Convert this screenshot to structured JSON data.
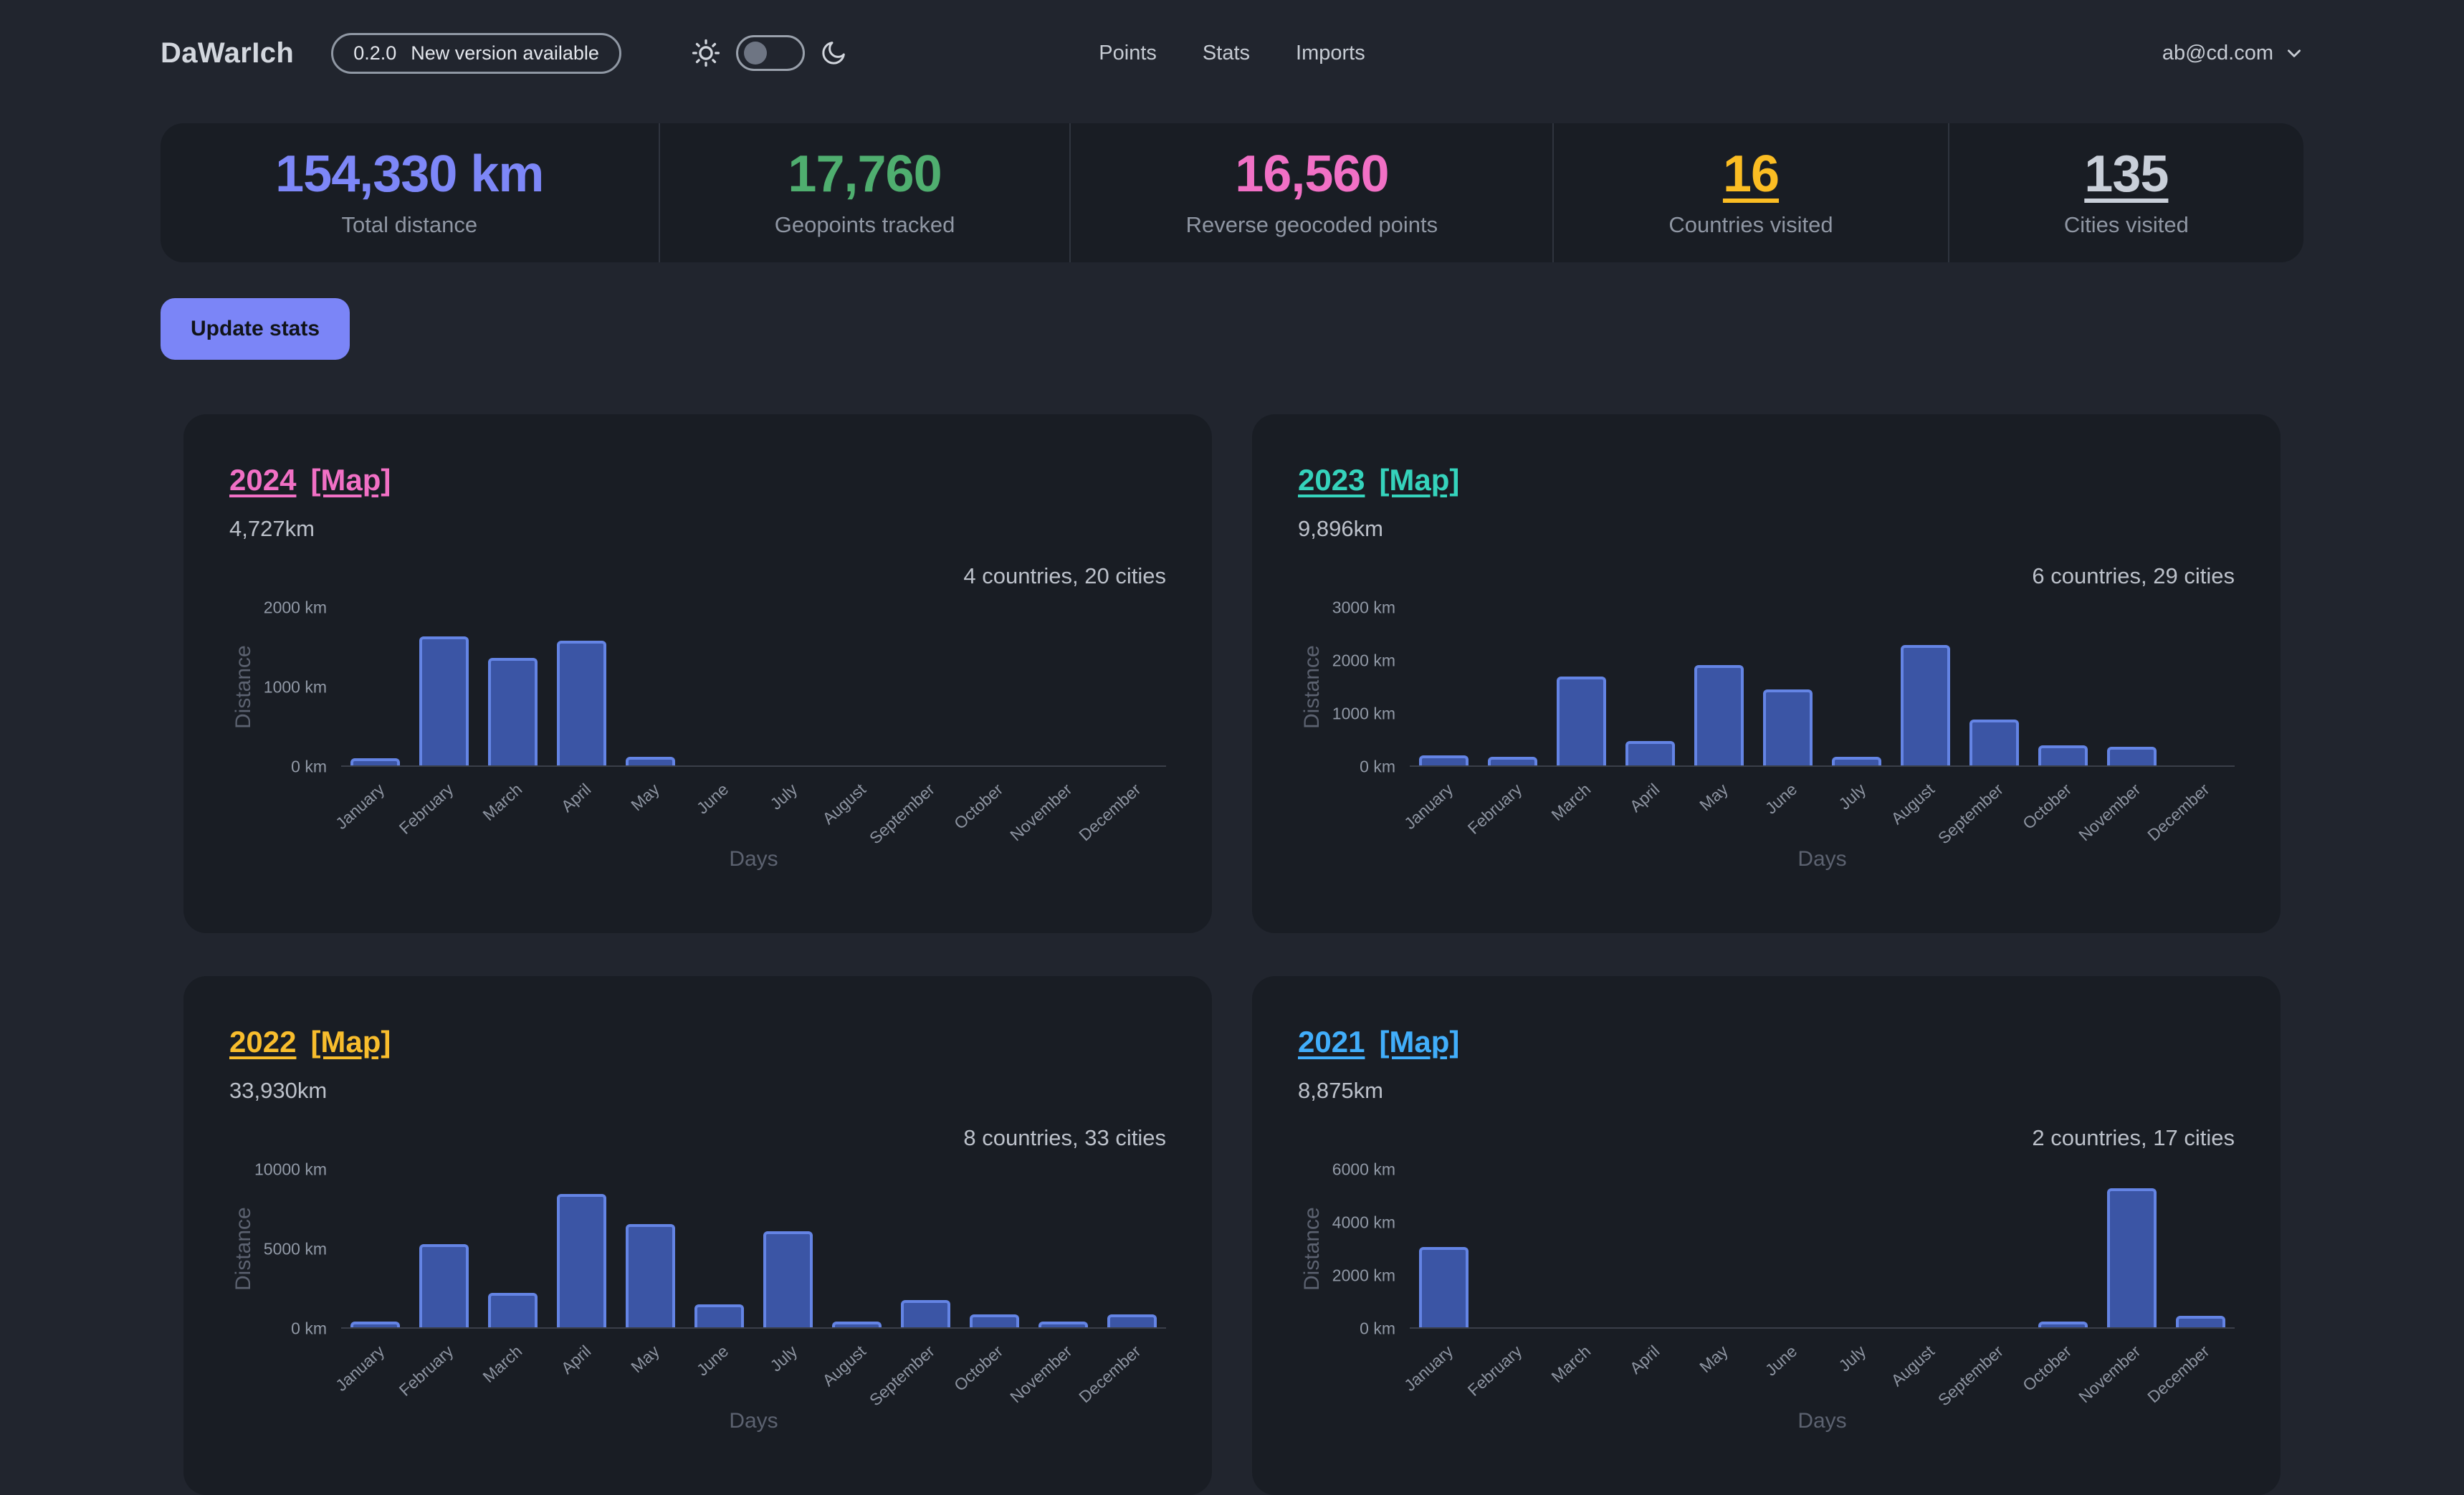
{
  "header": {
    "logo": "DaWarIch",
    "version_badge": {
      "version": "0.2.0",
      "text": "New version available"
    },
    "nav": [
      {
        "label": "Points"
      },
      {
        "label": "Stats"
      },
      {
        "label": "Imports"
      }
    ],
    "user_email": "ab@cd.com"
  },
  "summary_stats": [
    {
      "value": "154,330 km",
      "label": "Total distance",
      "color": "#7d87f8",
      "link": false
    },
    {
      "value": "17,760",
      "label": "Geopoints tracked",
      "color": "#4fae6f",
      "link": false
    },
    {
      "value": "16,560",
      "label": "Reverse geocoded points",
      "color": "#f170c5",
      "link": false
    },
    {
      "value": "16",
      "label": "Countries visited",
      "color": "#fbbd23",
      "link": true
    },
    {
      "value": "135",
      "label": "Cities visited",
      "color": "#c9cfd9",
      "link": true
    }
  ],
  "actions": {
    "update_stats_label": "Update stats",
    "update_stats_color": "#7b85f7"
  },
  "chart_data": [
    {
      "type": "bar",
      "year": "2024",
      "map_label": "[Map]",
      "accent": "#f170c5",
      "total": "4,727km",
      "subtitle": "4 countries, 20 cities",
      "categories": [
        "January",
        "February",
        "March",
        "April",
        "May",
        "June",
        "July",
        "August",
        "September",
        "October",
        "November",
        "December"
      ],
      "values": [
        95,
        1620,
        1345,
        1565,
        100,
        0,
        0,
        0,
        0,
        0,
        0,
        0
      ],
      "ylabel": "Distance",
      "xlabel": "Days",
      "unit": "km",
      "yticks": [
        0,
        1000,
        2000
      ],
      "ylim": [
        0,
        2000
      ],
      "grid": false,
      "legend": "none",
      "bar_fill": "#3b55a5",
      "bar_border": "#6484e4"
    },
    {
      "type": "bar",
      "year": "2023",
      "map_label": "[Map]",
      "accent": "#35d3bc",
      "total": "9,896km",
      "subtitle": "6 countries, 29 cities",
      "categories": [
        "January",
        "February",
        "March",
        "April",
        "May",
        "June",
        "July",
        "August",
        "September",
        "October",
        "November",
        "December"
      ],
      "values": [
        200,
        170,
        1680,
        470,
        1900,
        1420,
        170,
        2280,
        870,
        390,
        340,
        0
      ],
      "ylabel": "Distance",
      "xlabel": "Days",
      "unit": "km",
      "yticks": [
        0,
        1000,
        2000,
        3000
      ],
      "ylim": [
        0,
        3000
      ],
      "grid": false,
      "legend": "none",
      "bar_fill": "#3b55a5",
      "bar_border": "#6484e4"
    },
    {
      "type": "bar",
      "year": "2022",
      "map_label": "[Map]",
      "accent": "#f8bd2d",
      "total": "33,930km",
      "subtitle": "8 countries, 33 cities",
      "categories": [
        "January",
        "February",
        "March",
        "April",
        "May",
        "June",
        "July",
        "August",
        "September",
        "October",
        "November",
        "December"
      ],
      "values": [
        220,
        5250,
        2150,
        8400,
        6500,
        1450,
        6050,
        220,
        1750,
        820,
        270,
        830
      ],
      "ylabel": "Distance",
      "xlabel": "Days",
      "unit": "km",
      "yticks": [
        0,
        5000,
        10000
      ],
      "ylim": [
        0,
        10000
      ],
      "grid": false,
      "legend": "none",
      "bar_fill": "#3b55a5",
      "bar_border": "#6484e4"
    },
    {
      "type": "bar",
      "year": "2021",
      "map_label": "[Map]",
      "accent": "#41aefb",
      "total": "8,875km",
      "subtitle": "2 countries, 17 cities",
      "categories": [
        "January",
        "February",
        "March",
        "April",
        "May",
        "June",
        "July",
        "August",
        "September",
        "October",
        "November",
        "December"
      ],
      "values": [
        3050,
        0,
        0,
        0,
        0,
        0,
        0,
        0,
        0,
        170,
        5230,
        420
      ],
      "ylabel": "Distance",
      "xlabel": "Days",
      "unit": "km",
      "yticks": [
        0,
        2000,
        4000,
        6000
      ],
      "ylim": [
        0,
        6000
      ],
      "grid": false,
      "legend": "none",
      "bar_fill": "#3b55a5",
      "bar_border": "#6484e4"
    }
  ]
}
